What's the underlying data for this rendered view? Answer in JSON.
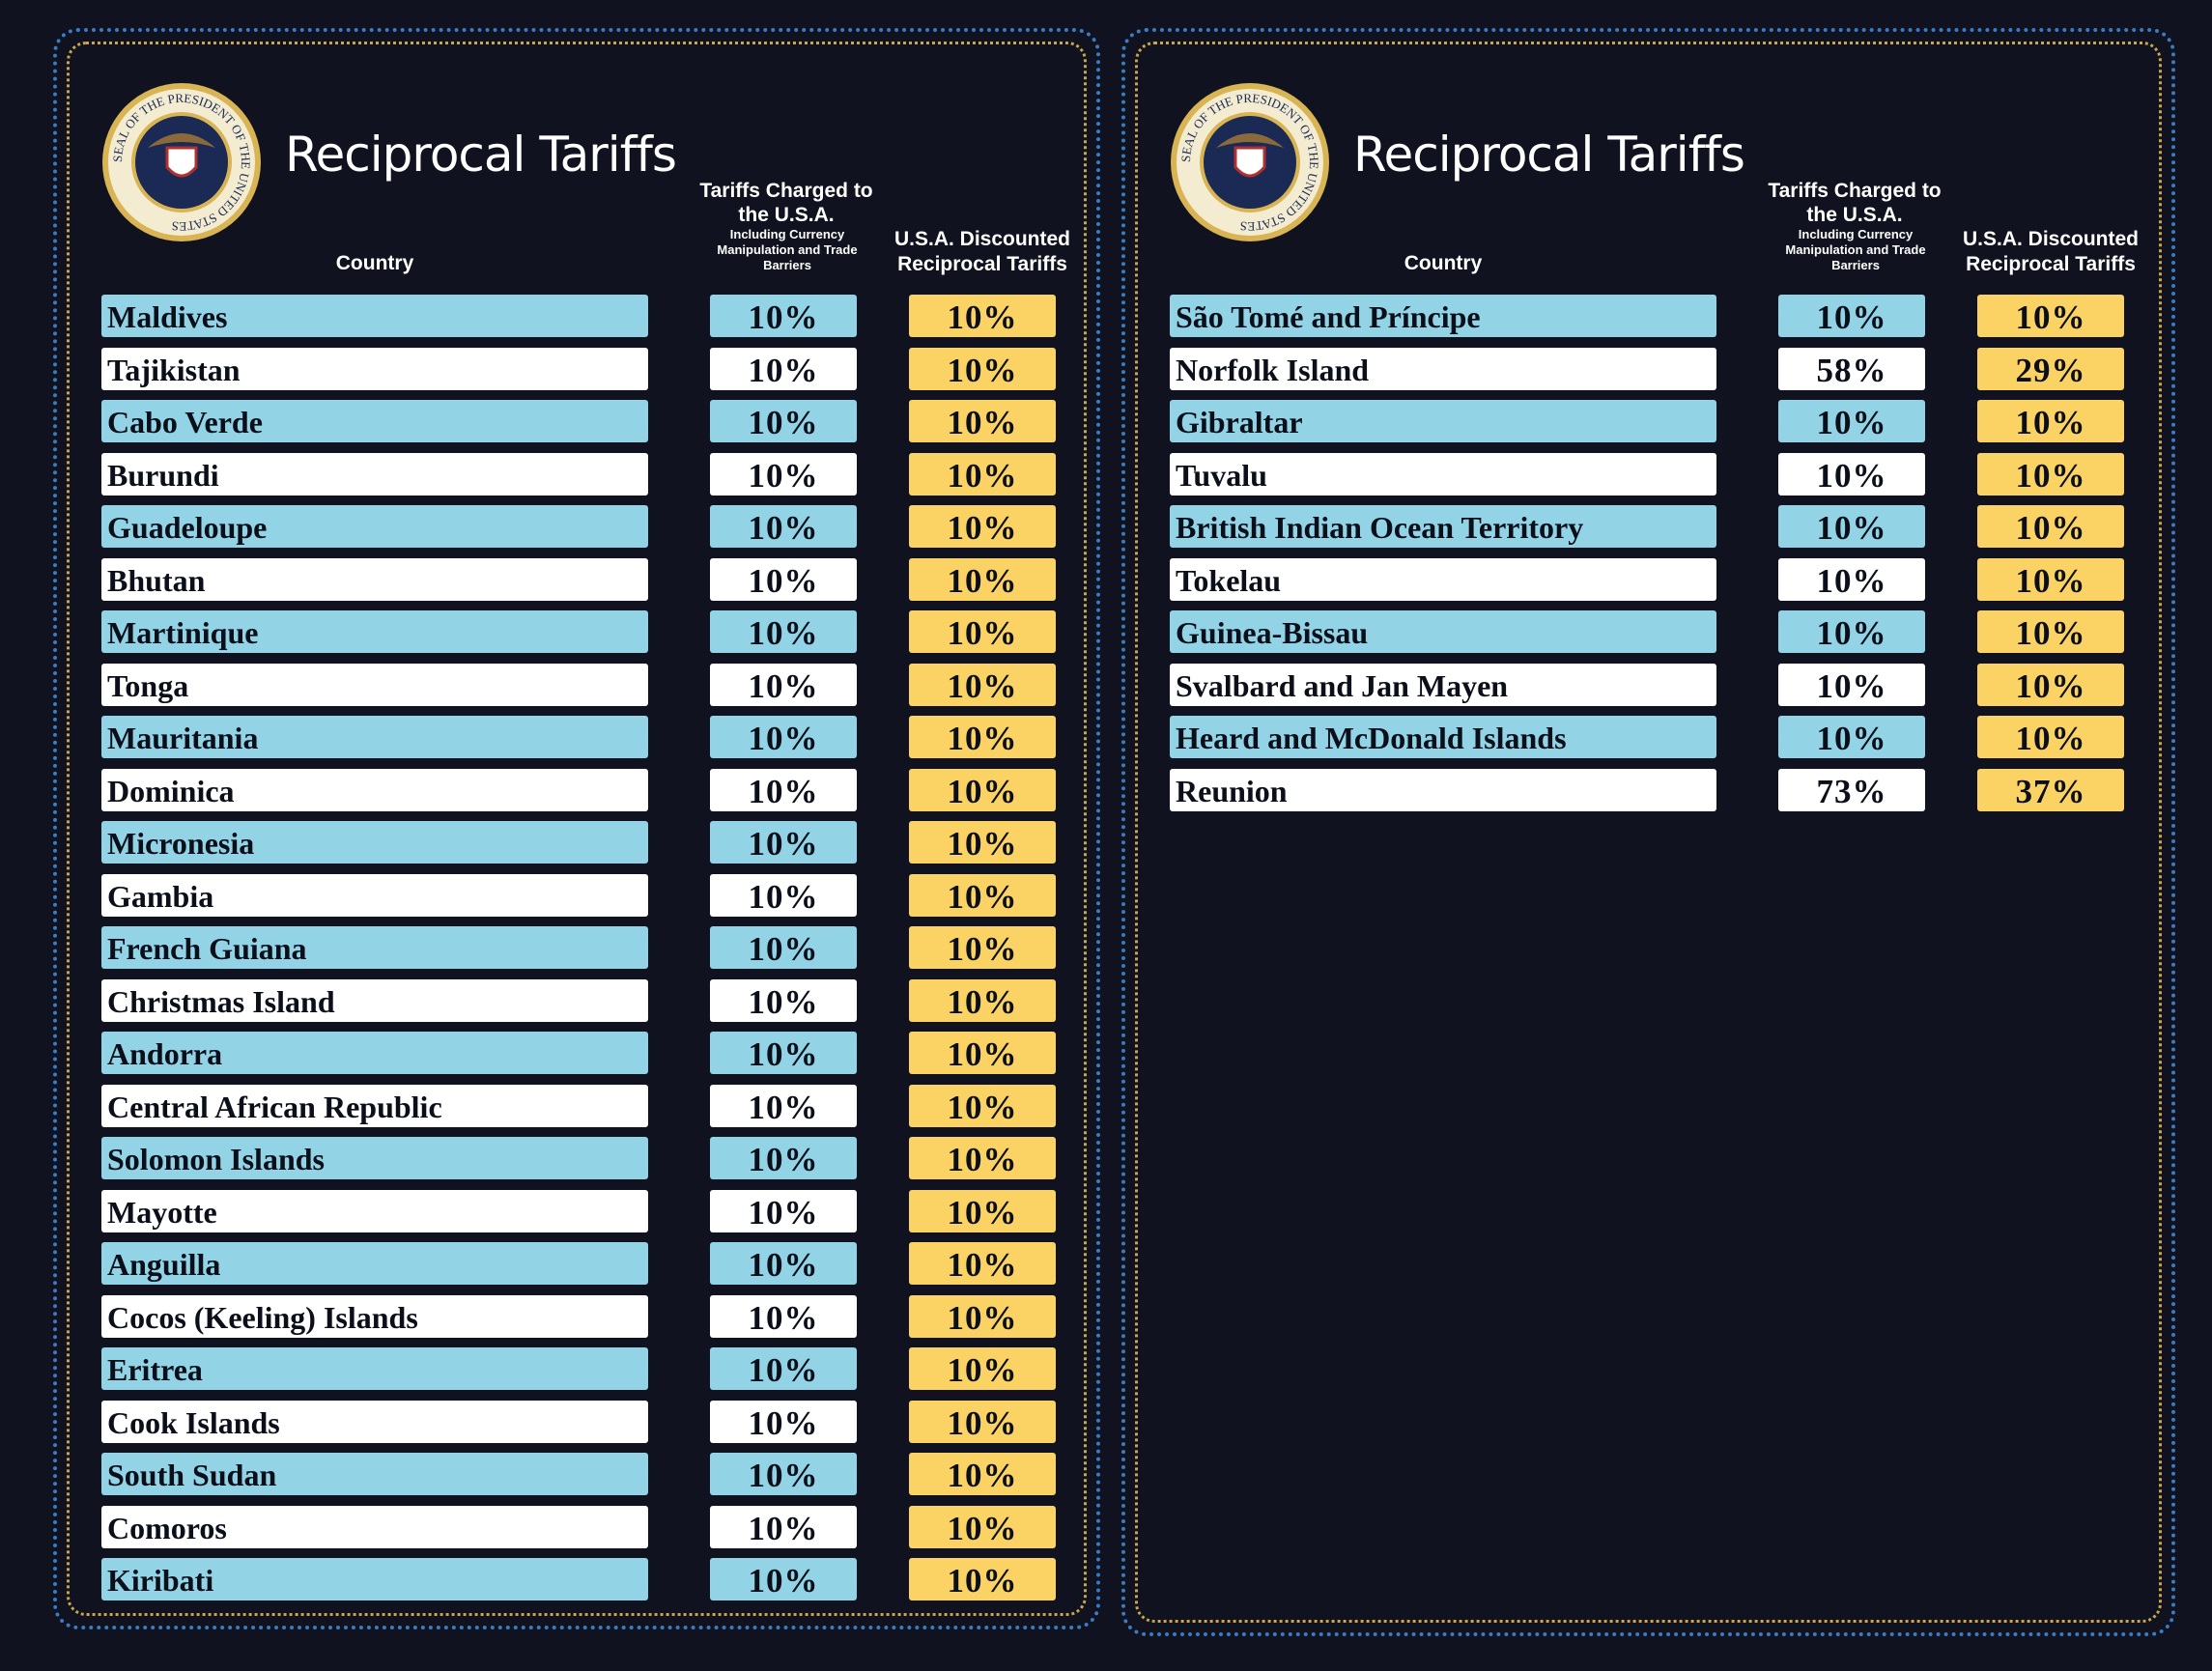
{
  "panels": [
    {
      "seal_text": "SEAL OF THE PRESIDENT OF THE UNITED STATES",
      "title": "Reciprocal Tariffs",
      "headers": {
        "country": "Country",
        "charged": "Tariffs Charged to the U.S.A.",
        "charged_note": "Including Currency Manipulation and Trade Barriers",
        "discounted": "U.S.A. Discounted Reciprocal Tariffs"
      },
      "rows": [
        {
          "country": "Maldives",
          "charged": "10%",
          "discounted": "10%"
        },
        {
          "country": "Tajikistan",
          "charged": "10%",
          "discounted": "10%"
        },
        {
          "country": "Cabo Verde",
          "charged": "10%",
          "discounted": "10%"
        },
        {
          "country": "Burundi",
          "charged": "10%",
          "discounted": "10%"
        },
        {
          "country": "Guadeloupe",
          "charged": "10%",
          "discounted": "10%"
        },
        {
          "country": "Bhutan",
          "charged": "10%",
          "discounted": "10%"
        },
        {
          "country": "Martinique",
          "charged": "10%",
          "discounted": "10%"
        },
        {
          "country": "Tonga",
          "charged": "10%",
          "discounted": "10%"
        },
        {
          "country": "Mauritania",
          "charged": "10%",
          "discounted": "10%"
        },
        {
          "country": "Dominica",
          "charged": "10%",
          "discounted": "10%"
        },
        {
          "country": "Micronesia",
          "charged": "10%",
          "discounted": "10%"
        },
        {
          "country": "Gambia",
          "charged": "10%",
          "discounted": "10%"
        },
        {
          "country": "French Guiana",
          "charged": "10%",
          "discounted": "10%"
        },
        {
          "country": "Christmas Island",
          "charged": "10%",
          "discounted": "10%"
        },
        {
          "country": "Andorra",
          "charged": "10%",
          "discounted": "10%"
        },
        {
          "country": "Central African Republic",
          "charged": "10%",
          "discounted": "10%"
        },
        {
          "country": "Solomon Islands",
          "charged": "10%",
          "discounted": "10%"
        },
        {
          "country": "Mayotte",
          "charged": "10%",
          "discounted": "10%"
        },
        {
          "country": "Anguilla",
          "charged": "10%",
          "discounted": "10%"
        },
        {
          "country": "Cocos (Keeling) Islands",
          "charged": "10%",
          "discounted": "10%"
        },
        {
          "country": "Eritrea",
          "charged": "10%",
          "discounted": "10%"
        },
        {
          "country": "Cook Islands",
          "charged": "10%",
          "discounted": "10%"
        },
        {
          "country": "South Sudan",
          "charged": "10%",
          "discounted": "10%"
        },
        {
          "country": "Comoros",
          "charged": "10%",
          "discounted": "10%"
        },
        {
          "country": "Kiribati",
          "charged": "10%",
          "discounted": "10%"
        }
      ]
    },
    {
      "seal_text": "SEAL OF THE PRESIDENT OF THE UNITED STATES",
      "title": "Reciprocal Tariffs",
      "headers": {
        "country": "Country",
        "charged": "Tariffs Charged to the U.S.A.",
        "charged_note": "Including Currency Manipulation and Trade Barriers",
        "discounted": "U.S.A. Discounted Reciprocal Tariffs"
      },
      "rows": [
        {
          "country": "São Tomé and Príncipe",
          "charged": "10%",
          "discounted": "10%"
        },
        {
          "country": "Norfolk Island",
          "charged": "58%",
          "discounted": "29%"
        },
        {
          "country": "Gibraltar",
          "charged": "10%",
          "discounted": "10%"
        },
        {
          "country": "Tuvalu",
          "charged": "10%",
          "discounted": "10%"
        },
        {
          "country": "British Indian Ocean Territory",
          "charged": "10%",
          "discounted": "10%"
        },
        {
          "country": "Tokelau",
          "charged": "10%",
          "discounted": "10%"
        },
        {
          "country": "Guinea-Bissau",
          "charged": "10%",
          "discounted": "10%"
        },
        {
          "country": "Svalbard and Jan Mayen",
          "charged": "10%",
          "discounted": "10%"
        },
        {
          "country": "Heard and McDonald Islands",
          "charged": "10%",
          "discounted": "10%"
        },
        {
          "country": "Reunion",
          "charged": "73%",
          "discounted": "37%"
        }
      ]
    }
  ]
}
